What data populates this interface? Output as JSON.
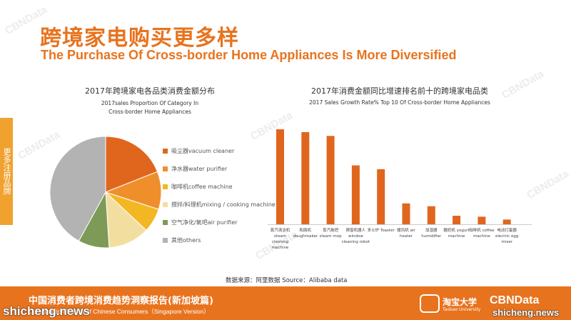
{
  "header": {
    "title_cn": "跨境家电购买更多样",
    "title_en": "The Purchase Of Cross-border Home Appliances Is More Diversified"
  },
  "side_tab": {
    "label": "更多注册品牌"
  },
  "watermark": {
    "text": "CBNData"
  },
  "pie_chart": {
    "title_cn": "2017年跨境家电各品类消费金额分布",
    "title_en": "2017sales Proportion Of Category In Cross-border Home Appliances"
  },
  "bar_chart": {
    "title_cn": "2017年消费金额同比增速排名前十的跨境家电品类",
    "title_en": "2017 Sales Growth Rate% Top 10 Of Cross-border Home Appliances"
  },
  "chart_data": [
    {
      "type": "pie",
      "categories": [
        "吸尘器vacuum cleaner",
        "净水器water purifier",
        "咖啡机coffee machine",
        "搅拌/料理机mixing / cooking machine",
        "空气净化/氧吧air purifier",
        "其他others"
      ],
      "values": [
        19,
        11,
        7,
        12,
        9,
        42
      ],
      "colors": [
        "#e0661e",
        "#ef8f2b",
        "#f4b724",
        "#f2dfa0",
        "#7d9a57",
        "#b3b3b3"
      ],
      "legend": "right"
    },
    {
      "type": "bar",
      "categories": [
        "蒸汽清洁机 steam cleaning machine",
        "和面机 doughmaker",
        "蒸汽拖把 steam mop",
        "擦窗机器人 window cleaning robot",
        "多士炉 Toaster",
        "暖风机 air heater",
        "加湿器 humidifier",
        "酸奶机 yogurt machine",
        "咖啡机 coffee machine",
        "电动打蛋器 electric egg mixer"
      ],
      "values": [
        100,
        97,
        93,
        62,
        58,
        22,
        19,
        9,
        8,
        5
      ],
      "color": "#e0661e",
      "grid": false
    }
  ],
  "bar_labels": [
    "蒸汽清洁机 steam cleaning machine",
    "和面机 doughmaker",
    "蒸汽拖把 steam mop",
    "擦窗机器人 window cleaning robot",
    "多士炉 Toaster",
    "暖风机 air heater",
    "加湿器 humidifier",
    "酸奶机 yogurt machine",
    "咖啡机 coffee machine",
    "电动打蛋器 electric egg mixer"
  ],
  "source": "数据来源：阿里数据  Source：Alibaba data",
  "footer": {
    "title_cn": "中国消费者跨境消费趋势洞察报告(新加坡篇)",
    "title_en": "Consumption Trends of Chinese Consumers（Singapore Version）",
    "logo1_text": "淘宝大学",
    "logo1_sub": "Taobao University",
    "logo2_text": "CBNData"
  },
  "site_watermark": "shicheng.news"
}
